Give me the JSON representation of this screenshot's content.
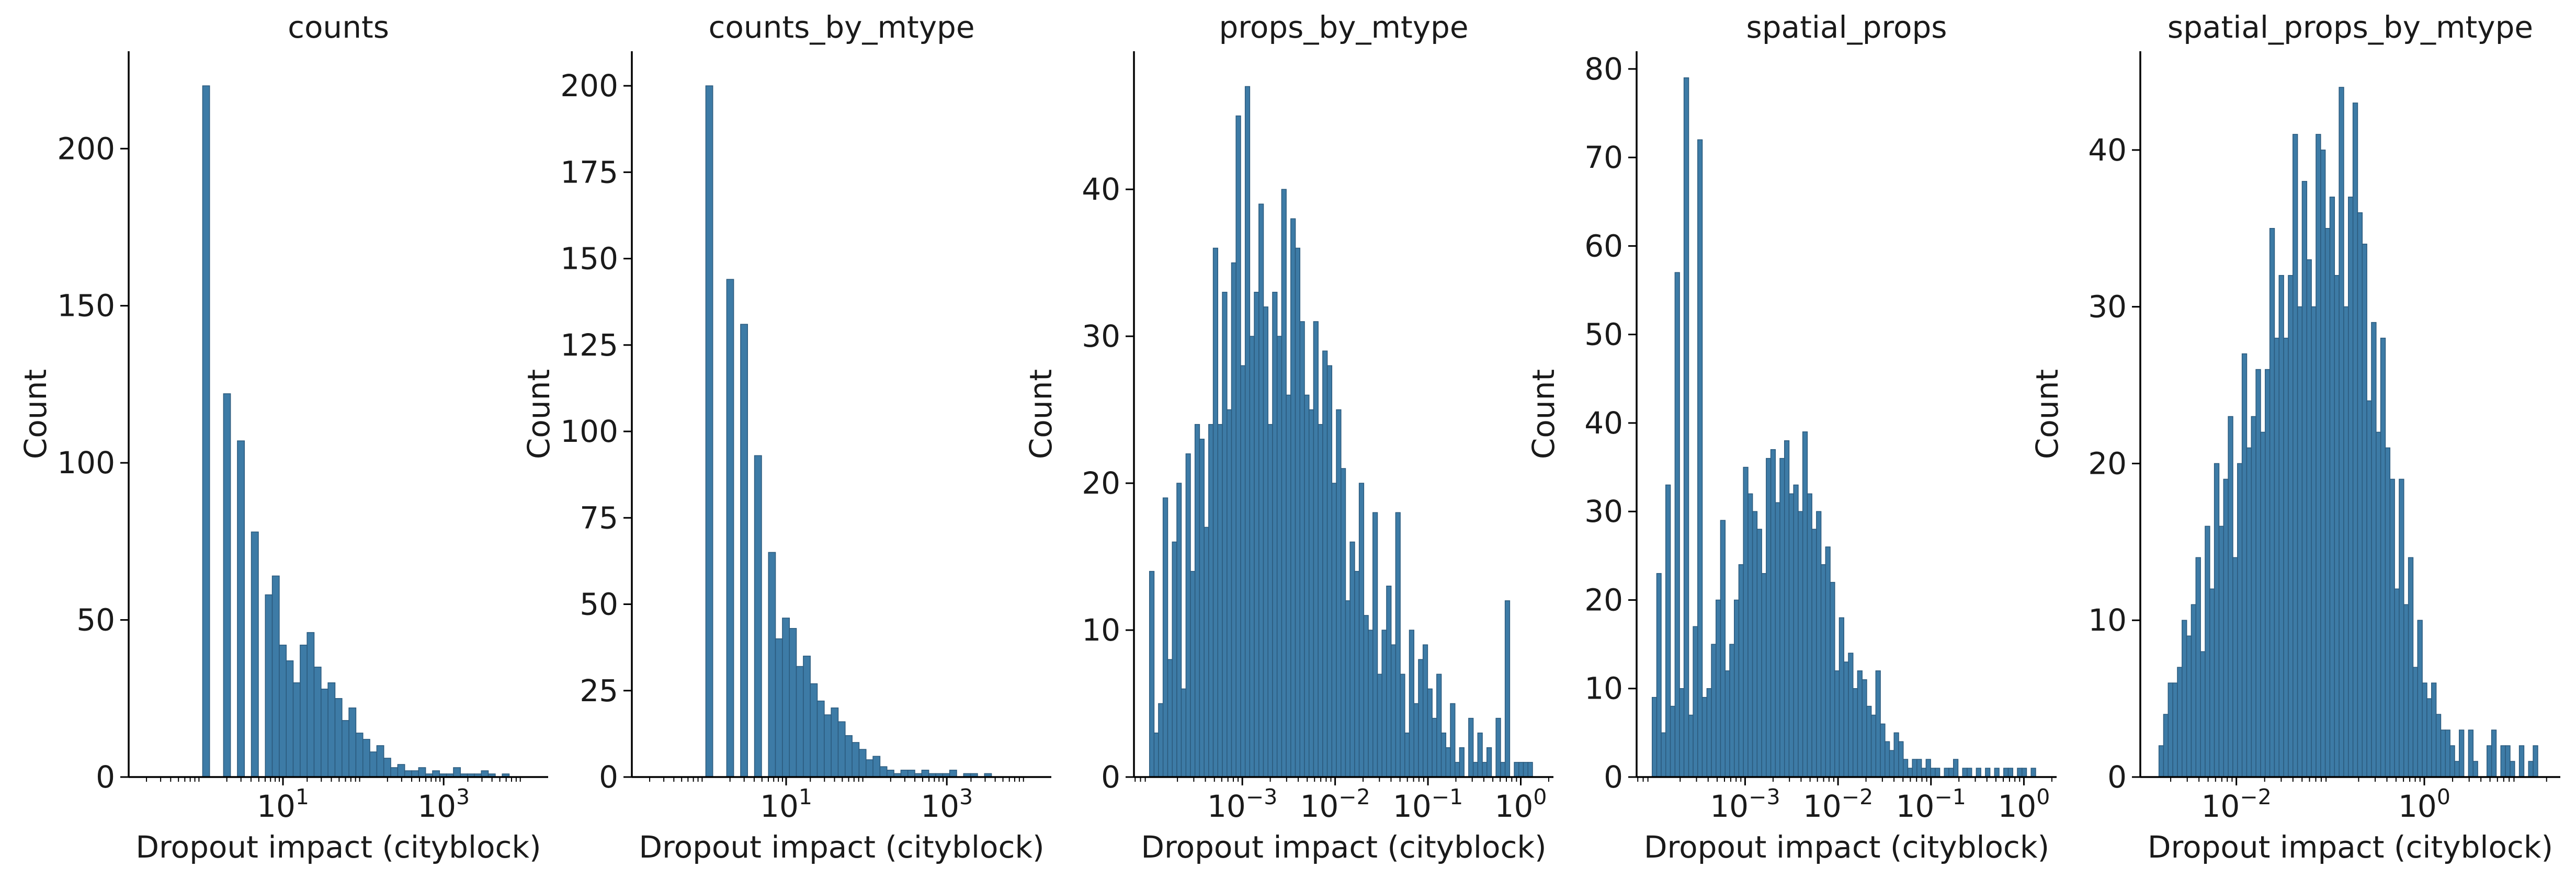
{
  "chart_data": [
    {
      "type": "bar",
      "title": "counts",
      "xlabel": "Dropout impact (cityblock)",
      "ylabel": "Count",
      "xscale": "log",
      "xlim": [
        0.12,
        20000
      ],
      "ylim": [
        0,
        231
      ],
      "yticks": [
        0,
        50,
        100,
        150,
        200
      ],
      "xticks": [
        {
          "value": 10,
          "base": "10",
          "exp": "1"
        },
        {
          "value": 1000,
          "base": "10",
          "exp": "3"
        }
      ],
      "bin_edges": [
        1.0,
        1.22,
        1.49,
        1.82,
        2.22,
        2.71,
        3.31,
        4.04,
        4.94,
        6.03,
        7.36,
        8.99,
        10.98,
        13.4,
        16.37,
        19.98,
        24.4,
        29.8,
        36.38,
        44.43,
        54.25,
        66.24,
        80.88,
        98.76,
        120.59,
        147.25,
        179.81,
        219.56,
        268.1,
        327.37,
        399.74,
        488.12,
        596.03,
        727.8,
        888.7,
        1085.17,
        1325.08,
        1618.03,
        1975.74,
        2412.53,
        2945.88,
        3597.14,
        4392.37,
        5363.41,
        6549.12
      ],
      "values": [
        220,
        0,
        0,
        122,
        0,
        107,
        0,
        78,
        0,
        58,
        64,
        42,
        37,
        30,
        42,
        46,
        35,
        28,
        30,
        25,
        18,
        22,
        14,
        12,
        8,
        10,
        6,
        3,
        4,
        2,
        2,
        3,
        1,
        2,
        1,
        1,
        3,
        1,
        1,
        1,
        2,
        1,
        0,
        1
      ],
      "bar_color": "#3d7ba6",
      "edge_color": "#2b5a7d"
    },
    {
      "type": "bar",
      "title": "counts_by_mtype",
      "xlabel": "Dropout impact (cityblock)",
      "ylabel": "Count",
      "xscale": "log",
      "xlim": [
        0.12,
        20000
      ],
      "ylim": [
        0,
        210
      ],
      "yticks": [
        0,
        25,
        50,
        75,
        100,
        125,
        150,
        175,
        200
      ],
      "xticks": [
        {
          "value": 10,
          "base": "10",
          "exp": "1"
        },
        {
          "value": 1000,
          "base": "10",
          "exp": "3"
        }
      ],
      "bin_edges": [
        1.0,
        1.22,
        1.49,
        1.82,
        2.22,
        2.71,
        3.31,
        4.04,
        4.94,
        6.03,
        7.36,
        8.99,
        10.98,
        13.4,
        16.37,
        19.98,
        24.4,
        29.8,
        36.38,
        44.43,
        54.25,
        66.24,
        80.88,
        98.76,
        120.59,
        147.25,
        179.81,
        219.56,
        268.1,
        327.37,
        399.74,
        488.12,
        596.03,
        727.8,
        888.7,
        1085.17,
        1325.08,
        1618.03,
        1975.74,
        2412.53,
        2945.88,
        3597.14,
        4392.37,
        5363.41,
        6549.12
      ],
      "values": [
        200,
        0,
        0,
        144,
        0,
        131,
        0,
        93,
        0,
        65,
        40,
        46,
        43,
        32,
        35,
        27,
        22,
        18,
        20,
        16,
        12,
        10,
        8,
        5,
        6,
        3,
        2,
        1,
        2,
        2,
        1,
        2,
        1,
        1,
        1,
        2,
        0,
        1,
        1,
        0,
        1,
        0,
        0,
        0
      ],
      "bar_color": "#3d7ba6",
      "edge_color": "#2b5a7d"
    },
    {
      "type": "bar",
      "title": "props_by_mtype",
      "xlabel": "Dropout impact (cityblock)",
      "ylabel": "Count",
      "xscale": "log",
      "xlim": [
        6.8e-05,
        2.25
      ],
      "ylim": [
        0,
        49.4
      ],
      "yticks": [
        0,
        10,
        20,
        30,
        40
      ],
      "xticks": [
        {
          "value": 0.001,
          "base": "10",
          "exp": "−3"
        },
        {
          "value": 0.01,
          "base": "10",
          "exp": "−2"
        },
        {
          "value": 0.1,
          "base": "10",
          "exp": "−1"
        },
        {
          "value": 1,
          "base": "10",
          "exp": "0"
        }
      ],
      "bin_edges": [
        0.0001,
        0.000112,
        0.000125,
        0.00014,
        0.000157,
        0.000176,
        0.000197,
        0.00022,
        0.000247,
        0.000276,
        0.000309,
        0.000346,
        0.000388,
        0.000434,
        0.000486,
        0.000544,
        0.00061,
        0.000683,
        0.000765,
        0.000856,
        0.000959,
        0.001074,
        0.001202,
        0.001346,
        0.001508,
        0.001688,
        0.00189,
        0.002117,
        0.00237,
        0.002654,
        0.002972,
        0.003328,
        0.003727,
        0.004173,
        0.004673,
        0.005233,
        0.00586,
        0.006562,
        0.007348,
        0.008228,
        0.009214,
        0.010317,
        0.011553,
        0.012937,
        0.014487,
        0.016222,
        0.018166,
        0.020342,
        0.022779,
        0.025508,
        0.028563,
        0.031985,
        0.035816,
        0.040107,
        0.044911,
        0.050291,
        0.056316,
        0.063062,
        0.070616,
        0.079075,
        0.088548,
        0.099155,
        0.111033,
        0.124334,
        0.139228,
        0.155906,
        0.174583,
        0.195496,
        0.218915,
        0.245139,
        0.274505,
        0.307389,
        0.344211,
        0.385445,
        0.431618,
        0.483322,
        0.54122,
        0.606054,
        0.678654,
        0.759951,
        0.851388,
        0.95332,
        1.06752,
        1.1954,
        1.3386
      ],
      "values": [
        14,
        3,
        5,
        19,
        8,
        16,
        20,
        6,
        22,
        14,
        24,
        23,
        17,
        24,
        36,
        24,
        33,
        25,
        35,
        45,
        28,
        47,
        30,
        33,
        39,
        32,
        24,
        33,
        30,
        40,
        26,
        38,
        36,
        31,
        26,
        25,
        31,
        24,
        29,
        28,
        20,
        25,
        21,
        12,
        16,
        14,
        20,
        11,
        10,
        18,
        7,
        10,
        13,
        9,
        18,
        7,
        3,
        10,
        5,
        8,
        9,
        6,
        4,
        7,
        3,
        2,
        5,
        1,
        2,
        0,
        4,
        1,
        3,
        1,
        2,
        0,
        4,
        1,
        12,
        0,
        1,
        1,
        1,
        1
      ],
      "bar_color": "#3d7ba6",
      "edge_color": "#2b5a7d"
    },
    {
      "type": "bar",
      "title": "spatial_props",
      "xlabel": "Dropout impact (cityblock)",
      "ylabel": "Count",
      "xscale": "log",
      "xlim": [
        6.8e-05,
        2.25
      ],
      "ylim": [
        0,
        82
      ],
      "yticks": [
        0,
        10,
        20,
        30,
        40,
        50,
        60,
        70,
        80
      ],
      "xticks": [
        {
          "value": 0.001,
          "base": "10",
          "exp": "−3"
        },
        {
          "value": 0.01,
          "base": "10",
          "exp": "−2"
        },
        {
          "value": 0.1,
          "base": "10",
          "exp": "−1"
        },
        {
          "value": 1,
          "base": "10",
          "exp": "0"
        }
      ],
      "bin_edges": [
        0.0001,
        0.000112,
        0.000125,
        0.00014,
        0.000157,
        0.000176,
        0.000197,
        0.00022,
        0.000247,
        0.000276,
        0.000309,
        0.000346,
        0.000388,
        0.000434,
        0.000486,
        0.000544,
        0.00061,
        0.000683,
        0.000765,
        0.000856,
        0.000959,
        0.001074,
        0.001202,
        0.001346,
        0.001508,
        0.001688,
        0.00189,
        0.002117,
        0.00237,
        0.002654,
        0.002972,
        0.003328,
        0.003727,
        0.004173,
        0.004673,
        0.005233,
        0.00586,
        0.006562,
        0.007348,
        0.008228,
        0.009214,
        0.010317,
        0.011553,
        0.012937,
        0.014487,
        0.016222,
        0.018166,
        0.020342,
        0.022779,
        0.025508,
        0.028563,
        0.031985,
        0.035816,
        0.040107,
        0.044911,
        0.050291,
        0.056316,
        0.063062,
        0.070616,
        0.079075,
        0.088548,
        0.099155,
        0.111033,
        0.124334,
        0.139228,
        0.155906,
        0.174583,
        0.195496,
        0.218915,
        0.245139,
        0.274505,
        0.307389,
        0.344211,
        0.385445,
        0.431618,
        0.483322,
        0.54122,
        0.606054,
        0.678654,
        0.759951,
        0.851388,
        0.95332,
        1.06752,
        1.1954,
        1.3386
      ],
      "values": [
        9,
        23,
        5,
        33,
        8,
        57,
        10,
        79,
        7,
        17,
        72,
        9,
        10,
        15,
        20,
        29,
        12,
        15,
        20,
        24,
        35,
        32,
        30,
        28,
        23,
        36,
        37,
        31,
        36,
        38,
        32,
        33,
        30,
        39,
        32,
        28,
        30,
        24,
        26,
        22,
        12,
        18,
        13,
        14,
        10,
        12,
        11,
        8,
        7,
        12,
        6,
        4,
        3,
        5,
        4,
        2,
        1,
        2,
        2,
        1,
        2,
        1,
        1,
        0,
        1,
        1,
        2,
        0,
        1,
        1,
        0,
        1,
        0,
        1,
        0,
        1,
        0,
        1,
        1,
        0,
        1,
        1,
        0,
        1
      ],
      "bar_color": "#3d7ba6",
      "edge_color": "#2b5a7d"
    },
    {
      "type": "bar",
      "title": "spatial_props_by_mtype",
      "xlabel": "Dropout impact (cityblock)",
      "ylabel": "Count",
      "xscale": "log",
      "xlim": [
        0.00095,
        28
      ],
      "ylim": [
        0,
        46.3
      ],
      "yticks": [
        0,
        10,
        20,
        30,
        40
      ],
      "xticks": [
        {
          "value": 0.01,
          "base": "10",
          "exp": "−2"
        },
        {
          "value": 1,
          "base": "10",
          "exp": "0"
        }
      ],
      "bin_edges": [
        0.0015,
        0.00168,
        0.001881,
        0.002107,
        0.002359,
        0.002642,
        0.002959,
        0.003313,
        0.00371,
        0.004155,
        0.004653,
        0.005211,
        0.005835,
        0.006535,
        0.007318,
        0.008195,
        0.009177,
        0.010277,
        0.011509,
        0.012888,
        0.014433,
        0.016163,
        0.0181,
        0.02027,
        0.0227,
        0.02542,
        0.028468,
        0.03188,
        0.035701,
        0.03998,
        0.044772,
        0.050139,
        0.056149,
        0.062879,
        0.070415,
        0.078855,
        0.088307,
        0.098891,
        0.110744,
        0.124018,
        0.138883,
        0.15553,
        0.174171,
        0.195048,
        0.218426,
        0.244607,
        0.273924,
        0.306757,
        0.343525,
        0.384699,
        0.430809,
        0.482445,
        0.540271,
        0.605027,
        0.677546,
        0.758757,
        0.8497,
        0.951546,
        1.0656,
        1.19331,
        1.33634,
        1.49651,
        1.67588,
        1.87675,
        2.1017,
        2.3536,
        2.6357,
        2.9516,
        3.3054,
        3.7015,
        4.1452,
        4.642,
        5.1984,
        5.8215,
        6.5192,
        7.3006,
        8.1756,
        9.1555,
        10.253,
        11.482,
        12.858,
        14.399,
        16.125,
        18.058
      ],
      "values": [
        2,
        4,
        6,
        6,
        7,
        10,
        9,
        11,
        14,
        8,
        16,
        12,
        20,
        16,
        19,
        23,
        14,
        20,
        27,
        21,
        23,
        26,
        22,
        26,
        35,
        28,
        32,
        28,
        32,
        41,
        30,
        38,
        33,
        30,
        41,
        40,
        35,
        37,
        32,
        44,
        30,
        37,
        43,
        36,
        34,
        24,
        29,
        22,
        28,
        21,
        19,
        12,
        19,
        11,
        14,
        7,
        10,
        6,
        5,
        6,
        4,
        3,
        3,
        2,
        1,
        3,
        0,
        3,
        1,
        0,
        0,
        2,
        3,
        0,
        2,
        2,
        1,
        0,
        2,
        0,
        1,
        2,
        0
      ],
      "bar_color": "#3d7ba6",
      "edge_color": "#2b5a7d"
    }
  ]
}
